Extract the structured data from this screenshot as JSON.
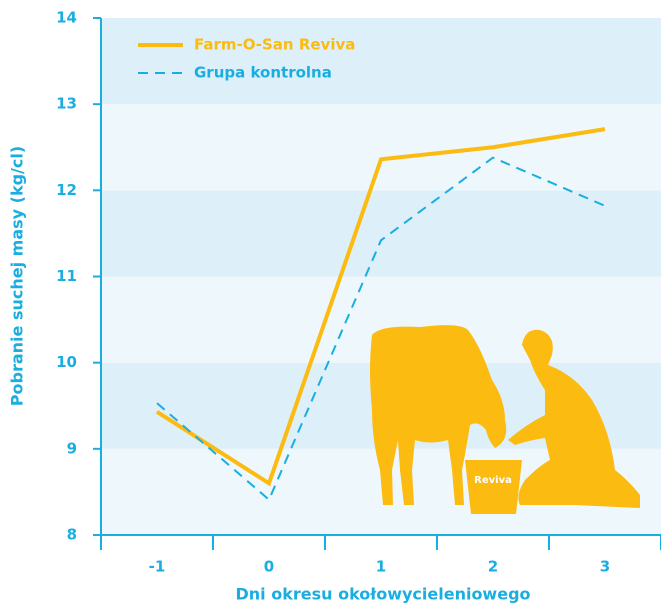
{
  "chart_data": {
    "type": "line",
    "xlabel": "Dni okresu okołowycieleniowego",
    "ylabel": "Pobranie suchej masy (kg/cl)",
    "categories": [
      "-1",
      "0",
      "1",
      "2",
      "3"
    ],
    "series": [
      {
        "name": "Farm-O-San Reviva",
        "color": "#fbbb10",
        "values": [
          9.43,
          8.6,
          12.36,
          12.5,
          12.71
        ]
      },
      {
        "name": "Grupa kontrolna",
        "color": "#1aaee0",
        "values": [
          9.53,
          8.41,
          11.42,
          12.38,
          11.82
        ]
      }
    ],
    "ylim": [
      8,
      14
    ],
    "yticks": [
      8,
      9,
      10,
      11,
      12,
      13,
      14
    ],
    "annotation": "Reviva",
    "legend": "top-left"
  }
}
